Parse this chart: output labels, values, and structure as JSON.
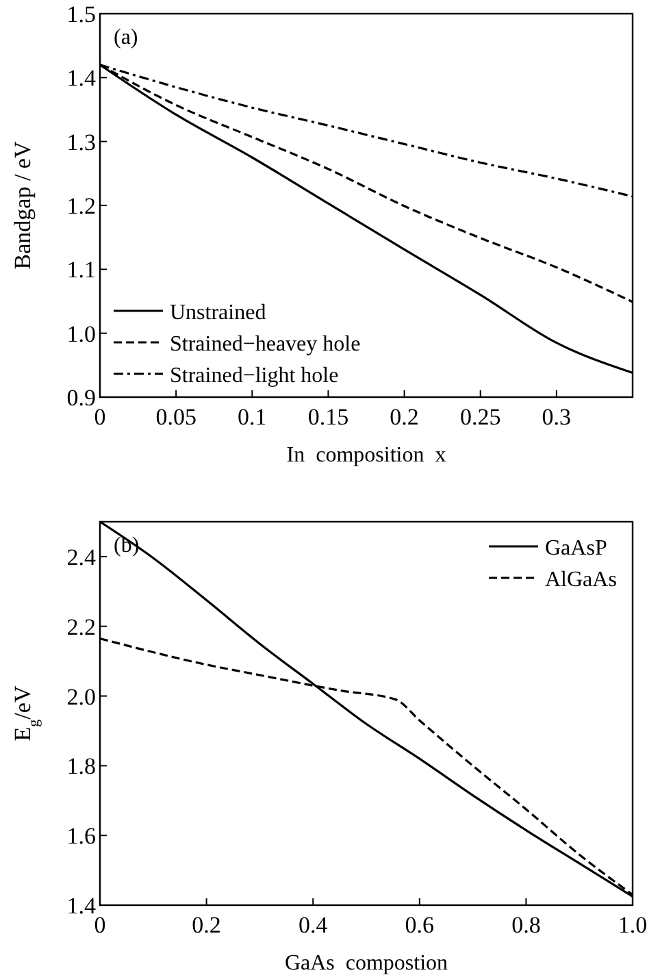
{
  "chart_data": [
    {
      "type": "line",
      "xlabel": "In  composition  x",
      "ylabel": "Bandgap / eV",
      "annotations": [
        "(a)"
      ],
      "xlim": [
        0,
        0.35
      ],
      "xticks": [
        0,
        0.05,
        0.1,
        0.15,
        0.2,
        0.25,
        0.3
      ],
      "ylim": [
        0.9,
        1.5
      ],
      "yticks": [
        {
          "value": 0.9,
          "label": "0.9"
        },
        {
          "value": 1.0,
          "label": "1.0"
        },
        {
          "value": 1.1,
          "label": "1.1"
        },
        {
          "value": 1.2,
          "label": "1.2"
        },
        {
          "value": 1.3,
          "label": "1.3"
        },
        {
          "value": 1.4,
          "label": "1.4"
        },
        {
          "value": 1.5,
          "label": "1.5"
        }
      ],
      "legend": "bottom left",
      "grid": false,
      "x": [
        0,
        0.05,
        0.1,
        0.15,
        0.2,
        0.25,
        0.3,
        0.35
      ],
      "series": [
        {
          "name": "Unstrained",
          "color": "#000000",
          "line_style": "solid",
          "values": [
            1.42,
            1.342,
            1.275,
            1.203,
            1.131,
            1.06,
            0.985,
            0.938
          ]
        },
        {
          "name": "Strained−heavey hole",
          "color": "#000000",
          "line_style": "dashed",
          "values": [
            1.42,
            1.357,
            1.307,
            1.257,
            1.199,
            1.149,
            1.103,
            1.049
          ]
        },
        {
          "name": "Strained−light hole",
          "color": "#000000",
          "line_style": "dashdot",
          "values": [
            1.42,
            1.385,
            1.353,
            1.325,
            1.296,
            1.267,
            1.242,
            1.214
          ]
        }
      ]
    },
    {
      "type": "line",
      "xlabel": "GaAs  compostion",
      "ylabel": "E$_{g}$/eV",
      "annotations": [
        "(b)"
      ],
      "xlim": [
        0,
        1.0
      ],
      "xticks": [
        0,
        0.2,
        0.4,
        0.6,
        0.8,
        {
          "value": 1.0,
          "label": "1.0"
        }
      ],
      "ylim": [
        1.4,
        2.5
      ],
      "yticks": [
        {
          "value": 1.4,
          "label": "1.4"
        },
        {
          "value": 1.6,
          "label": "1.6"
        },
        {
          "value": 1.8,
          "label": "1.8"
        },
        {
          "value": 2.0,
          "label": "2.0"
        },
        {
          "value": 2.2,
          "label": "2.2"
        },
        {
          "value": 2.4,
          "label": "2.4"
        }
      ],
      "legend": "top right",
      "grid": false,
      "series": [
        {
          "name": "GaAsP",
          "color": "#000000",
          "line_style": "solid",
          "x": [
            0,
            0.1,
            0.2,
            0.3,
            0.4,
            0.5,
            0.6,
            0.7,
            0.8,
            0.9,
            1.0
          ],
          "values": [
            2.5,
            2.396,
            2.275,
            2.15,
            2.035,
            1.92,
            1.82,
            1.715,
            1.615,
            1.52,
            1.425
          ]
        },
        {
          "name": "AlGaAs",
          "color": "#000000",
          "line_style": "dashed",
          "x": [
            0,
            0.2,
            0.3,
            0.4,
            0.45,
            0.555,
            0.6,
            0.7,
            0.8,
            0.9,
            1.0
          ],
          "values": [
            2.165,
            2.09,
            2.06,
            2.03,
            2.016,
            1.99,
            1.93,
            1.8,
            1.675,
            1.545,
            1.43
          ]
        }
      ]
    }
  ]
}
